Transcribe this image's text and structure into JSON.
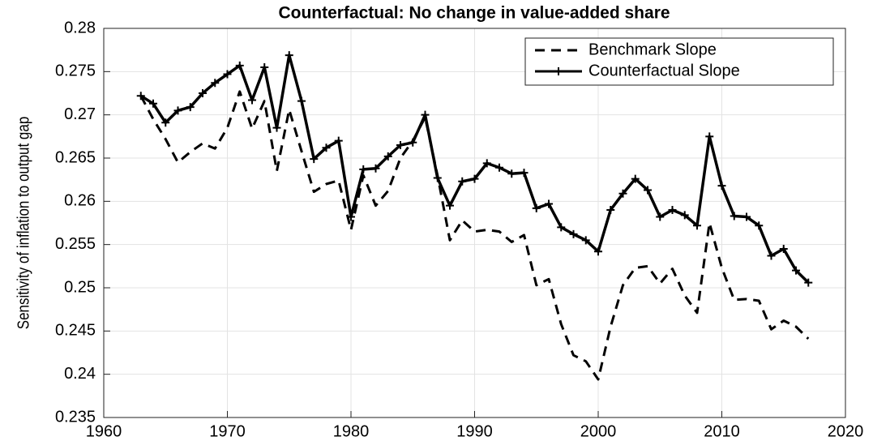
{
  "chart_data": {
    "type": "line",
    "title": "Counterfactual: No change in value-added share",
    "y_label": "Sensitivity of inflation to output gap",
    "x": [
      1963,
      1964,
      1965,
      1966,
      1967,
      1968,
      1969,
      1970,
      1971,
      1972,
      1973,
      1974,
      1975,
      1976,
      1977,
      1978,
      1979,
      1980,
      1981,
      1982,
      1983,
      1984,
      1985,
      1986,
      1987,
      1988,
      1989,
      1990,
      1991,
      1992,
      1993,
      1994,
      1995,
      1996,
      1997,
      1998,
      1999,
      2000,
      2001,
      2002,
      2003,
      2004,
      2005,
      2006,
      2007,
      2008,
      2009,
      2010,
      2011,
      2012,
      2013,
      2014,
      2015,
      2016,
      2017
    ],
    "series": [
      {
        "name": "Benchmark Slope",
        "color": "#000000",
        "line_style": "dashed",
        "marker": null,
        "values": [
          0.2722,
          0.2695,
          0.2672,
          0.2645,
          0.2657,
          0.2667,
          0.2661,
          0.2685,
          0.2727,
          0.2684,
          0.2716,
          0.2635,
          0.2706,
          0.2658,
          0.2611,
          0.262,
          0.2624,
          0.2567,
          0.263,
          0.2595,
          0.2612,
          0.265,
          0.267,
          0.2697,
          0.263,
          0.2555,
          0.2578,
          0.2565,
          0.2567,
          0.2565,
          0.2553,
          0.2561,
          0.2503,
          0.251,
          0.2458,
          0.2422,
          0.2415,
          0.2394,
          0.2455,
          0.2503,
          0.2523,
          0.2525,
          0.2505,
          0.2522,
          0.2491,
          0.2471,
          0.2575,
          0.2523,
          0.2486,
          0.2487,
          0.2485,
          0.2452,
          0.2462,
          0.2455,
          0.2441
        ]
      },
      {
        "name": "Counterfactual Slope",
        "color": "#000000",
        "line_style": "solid",
        "marker": "plus",
        "values": [
          0.2722,
          0.2713,
          0.2691,
          0.2705,
          0.2709,
          0.2725,
          0.2737,
          0.2747,
          0.2757,
          0.2717,
          0.2755,
          0.2685,
          0.2769,
          0.2716,
          0.2649,
          0.2662,
          0.267,
          0.2582,
          0.2637,
          0.2638,
          0.2652,
          0.2665,
          0.2668,
          0.27,
          0.2627,
          0.2595,
          0.2623,
          0.2626,
          0.2644,
          0.2639,
          0.2632,
          0.2633,
          0.2592,
          0.2597,
          0.257,
          0.2562,
          0.2555,
          0.2542,
          0.259,
          0.2609,
          0.2626,
          0.2613,
          0.2582,
          0.259,
          0.2584,
          0.2572,
          0.2675,
          0.2618,
          0.2583,
          0.2582,
          0.2572,
          0.2537,
          0.2545,
          0.252,
          0.2506
        ]
      }
    ],
    "xlim": [
      1960,
      2020
    ],
    "xticks": [
      1960,
      1970,
      1980,
      1990,
      2000,
      2010,
      2020
    ],
    "ylim": [
      0.235,
      0.28
    ],
    "yticks": [
      0.235,
      0.24,
      0.245,
      0.25,
      0.255,
      0.26,
      0.265,
      0.27,
      0.275,
      0.28
    ],
    "grid": true,
    "legend": "upper right"
  }
}
